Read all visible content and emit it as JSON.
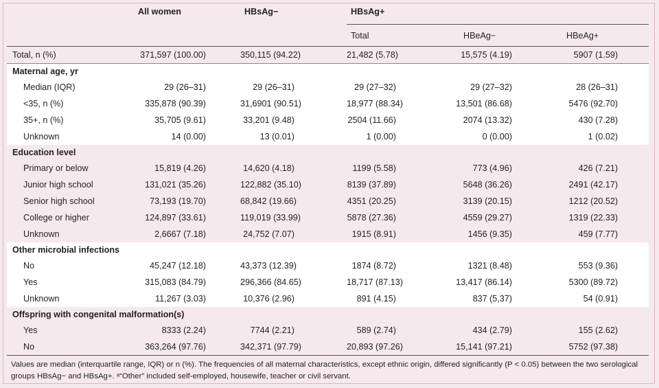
{
  "headers": {
    "all_women": "All women",
    "hbsag_neg": "HBsAg−",
    "hbsag_pos": "HBsAg+",
    "total": "Total",
    "hbeag_neg": "HBeAg−",
    "hbeag_pos": "HBeAg+"
  },
  "total_row": {
    "label": "Total, n (%)",
    "values": [
      "371,597 (100.00)",
      "350,115 (94.22)",
      "21,482 (5.78)",
      "15,575 (4.19)",
      "5907 (1.59)"
    ]
  },
  "sections": [
    {
      "title": "Maternal age, yr",
      "rows": [
        {
          "label": "Median (IQR)",
          "values": [
            "29 (26–31)",
            "29 (26–31)",
            "29 (27–32)",
            "29 (27–32)",
            "28 (26–31)"
          ]
        },
        {
          "label": "<35, n (%)",
          "values": [
            "335,878 (90.39)",
            "31,6901 (90.51)",
            "18,977 (88.34)",
            "13,501 (86.68)",
            "5476 (92.70)"
          ]
        },
        {
          "label": "35+, n (%)",
          "values": [
            "35,705 (9.61)",
            "33,201 (9.48)",
            "2504 (11.66)",
            "2074 (13.32)",
            "430 (7.28)"
          ]
        },
        {
          "label": "Unknown",
          "values": [
            "14 (0.00)",
            "13 (0.01)",
            "1 (0.00)",
            "0 (0.00)",
            "1 (0.02)"
          ]
        }
      ]
    },
    {
      "title": "Education level",
      "rows": [
        {
          "label": "Primary or below",
          "values": [
            "15,819 (4.26)",
            "14,620 (4.18)",
            "1199 (5.58)",
            "773 (4.96)",
            "426 (7.21)"
          ]
        },
        {
          "label": "Junior high school",
          "values": [
            "131,021 (35.26)",
            "122,882 (35.10)",
            "8139 (37.89)",
            "5648 (36.26)",
            "2491 (42.17)"
          ]
        },
        {
          "label": "Senior high school",
          "values": [
            "73,193 (19.70)",
            "68,842 (19.66)",
            "4351 (20.25)",
            "3139 (20.15)",
            "1212 (20.52)"
          ]
        },
        {
          "label": "College or higher",
          "values": [
            "124,897 (33.61)",
            "119,019 (33.99)",
            "5878 (27.36)",
            "4559 (29.27)",
            "1319 (22.33)"
          ]
        },
        {
          "label": "Unknown",
          "values": [
            "2,6667 (7.18)",
            "24,752 (7.07)",
            "1915 (8.91)",
            "1456 (9.35)",
            "459 (7.77)"
          ]
        }
      ]
    },
    {
      "title": "Other microbial infections",
      "rows": [
        {
          "label": "No",
          "values": [
            "45,247 (12.18)",
            "43,373 (12.39)",
            "1874 (8.72)",
            "1321 (8.48)",
            "553 (9.36)"
          ]
        },
        {
          "label": "Yes",
          "values": [
            "315,083 (84.79)",
            "296,366 (84.65)",
            "18,717 (87.13)",
            "13,417 (86.14)",
            "5300 (89.72)"
          ]
        },
        {
          "label": "Unknown",
          "values": [
            "11,267 (3.03)",
            "10,376 (2.96)",
            "891 (4.15)",
            "837 (5,37)",
            "54 (0.91)"
          ]
        }
      ]
    },
    {
      "title": "Offspring with congenital malformation(s)",
      "rows": [
        {
          "label": "Yes",
          "values": [
            "8333 (2.24)",
            "7744 (2.21)",
            "589 (2.74)",
            "434 (2.79)",
            "155 (2.62)"
          ]
        },
        {
          "label": "No",
          "values": [
            "363,264 (97.76)",
            "342,371 (97.79)",
            "20,893 (97.26)",
            "15,141 (97.21)",
            "5752 (97.38)"
          ]
        }
      ]
    }
  ],
  "footnote": "Values are median (interquartile range, IQR) or n (%). The frequencies of all maternal characteristics, except ethnic origin, differed significantly (P < 0.05) between the two serological groups HBsAg− and HBsAg+. ᵃ“Other” included self-employed, housewife, teacher or civil servant."
}
